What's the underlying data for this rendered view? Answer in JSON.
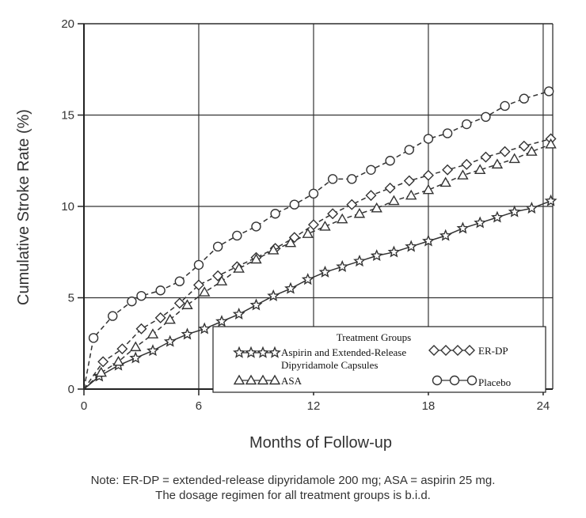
{
  "chart_data": {
    "type": "line",
    "xlabel": "Months of Follow-up",
    "ylabel": "Cumulative Stroke Rate (%)",
    "xlim": [
      0,
      24.5
    ],
    "ylim": [
      0,
      20
    ],
    "x_ticks": [
      0,
      6,
      12,
      18,
      24
    ],
    "y_ticks": [
      0,
      5,
      10,
      15,
      20
    ],
    "grid": true,
    "legend": {
      "title": "Treatment Groups",
      "placement": "bottom-right"
    },
    "series": [
      {
        "name": "Aspirin and Extended-Release Dipyridamole Capsules",
        "marker": "star",
        "dash": false,
        "x": [
          0,
          0.8,
          1.8,
          2.7,
          3.6,
          4.5,
          5.4,
          6.3,
          7.2,
          8.1,
          9,
          9.9,
          10.8,
          11.7,
          12.6,
          13.5,
          14.4,
          15.3,
          16.2,
          17.1,
          18,
          18.9,
          19.8,
          20.7,
          21.6,
          22.5,
          23.4,
          24.4
        ],
        "y": [
          0,
          0.7,
          1.3,
          1.7,
          2.1,
          2.6,
          3.0,
          3.3,
          3.7,
          4.1,
          4.6,
          5.1,
          5.5,
          6.0,
          6.4,
          6.7,
          7.0,
          7.3,
          7.5,
          7.8,
          8.1,
          8.4,
          8.8,
          9.1,
          9.4,
          9.7,
          9.9,
          10.3
        ]
      },
      {
        "name": "ER-DP",
        "marker": "diamond",
        "dash": true,
        "x": [
          0,
          1,
          2,
          3,
          4,
          5,
          6,
          7,
          8,
          9,
          10,
          11,
          12,
          13,
          14,
          15,
          16,
          17,
          18,
          19,
          20,
          21,
          22,
          23,
          24.4
        ],
        "y": [
          0,
          1.5,
          2.2,
          3.3,
          3.9,
          4.7,
          5.7,
          6.2,
          6.7,
          7.2,
          7.7,
          8.3,
          9.0,
          9.6,
          10.1,
          10.6,
          11.0,
          11.4,
          11.7,
          12.0,
          12.3,
          12.7,
          13.0,
          13.3,
          13.7
        ]
      },
      {
        "name": "ASA",
        "marker": "triangle",
        "dash": true,
        "x": [
          0,
          0.9,
          1.8,
          2.7,
          3.6,
          4.5,
          5.4,
          6.3,
          7.2,
          8.1,
          9,
          9.9,
          10.8,
          11.7,
          12.6,
          13.5,
          14.4,
          15.3,
          16.2,
          17.1,
          18,
          18.9,
          19.8,
          20.7,
          21.6,
          22.5,
          23.4,
          24.4
        ],
        "y": [
          0,
          0.9,
          1.5,
          2.3,
          3.0,
          3.8,
          4.6,
          5.3,
          5.9,
          6.6,
          7.1,
          7.6,
          8.0,
          8.5,
          8.9,
          9.3,
          9.6,
          9.9,
          10.3,
          10.6,
          10.9,
          11.3,
          11.7,
          12.0,
          12.3,
          12.6,
          13.0,
          13.4
        ]
      },
      {
        "name": "Placebo",
        "marker": "circle",
        "dash": true,
        "x": [
          0,
          0.5,
          1.5,
          2.5,
          3,
          4,
          5,
          6,
          7,
          8,
          9,
          10,
          11,
          12,
          13,
          14,
          15,
          16,
          17,
          18,
          19,
          20,
          21,
          22,
          23,
          24.3
        ],
        "y": [
          0,
          2.8,
          4.0,
          4.8,
          5.1,
          5.4,
          5.9,
          6.8,
          7.8,
          8.4,
          8.9,
          9.6,
          10.1,
          10.7,
          11.5,
          11.5,
          12.0,
          12.5,
          13.1,
          13.7,
          14.0,
          14.5,
          14.9,
          15.5,
          15.9,
          16.3
        ]
      }
    ]
  },
  "legend_labels": {
    "title": "Treatment Groups",
    "aspirin_er_dp_line1": "Aspirin and Extended-Release",
    "aspirin_er_dp_line2": "Dipyridamole Capsules",
    "er_dp": "ER-DP",
    "asa": "ASA",
    "placebo": "Placebo"
  },
  "note": {
    "line1": "Note: ER-DP = extended-release dipyridamole 200 mg; ASA = aspirin 25 mg.",
    "line2": "The dosage regimen for all treatment groups is b.i.d."
  }
}
